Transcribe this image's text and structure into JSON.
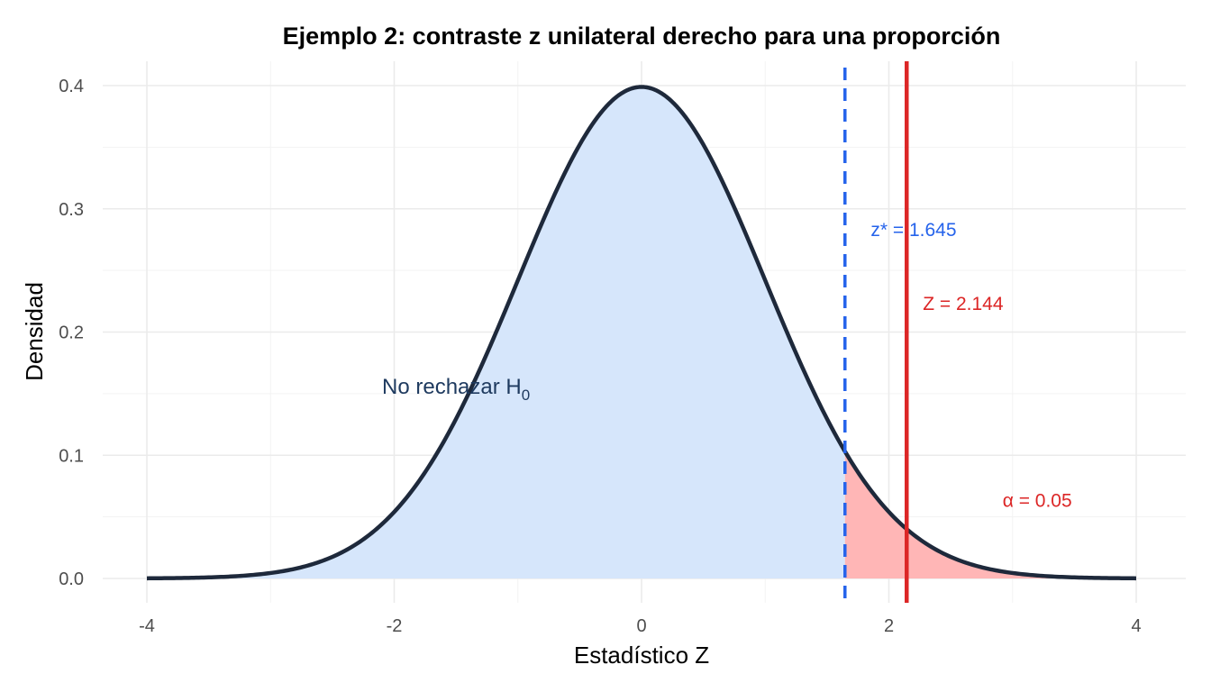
{
  "chart_data": {
    "type": "area",
    "title": "Ejemplo 2: contraste z unilateral derecho para una proporción",
    "xlabel": "Estadístico Z",
    "ylabel": "Densidad",
    "xlim": [
      -4,
      4
    ],
    "ylim": [
      0,
      0.4
    ],
    "x_ticks": [
      -4,
      -2,
      0,
      2,
      4
    ],
    "x_tick_labels": [
      "-4",
      "-2",
      "0",
      "2",
      "4"
    ],
    "y_ticks": [
      0.0,
      0.1,
      0.2,
      0.3,
      0.4
    ],
    "y_tick_labels": [
      "0.0",
      "0.1",
      "0.2",
      "0.3",
      "0.4"
    ],
    "grid": true,
    "distribution": "standard normal",
    "series": [
      {
        "region": "no-reject",
        "x_range": [
          -4,
          1.645
        ],
        "fill": "#d6e6fb"
      },
      {
        "region": "reject",
        "x_range": [
          1.645,
          4
        ],
        "fill": "#ffb6b6"
      }
    ],
    "curve_color": "#1e293b",
    "critical_value": {
      "x": 1.645,
      "label": "z* = 1.645",
      "color": "#2563eb",
      "style": "dashed"
    },
    "statistic": {
      "x": 2.144,
      "label": "Z = 2.144",
      "color": "#dc2626",
      "style": "solid"
    },
    "annotations": [
      {
        "text": "No rechazar H",
        "subscript": "0",
        "x": -1.5,
        "y": 0.15,
        "color": "#1e3a5f"
      },
      {
        "text": "α = 0.05",
        "x": 3.2,
        "y": 0.058,
        "color": "#dc2626"
      },
      {
        "text": "z* = 1.645",
        "x": 2.2,
        "y": 0.278,
        "color": "#2563eb"
      },
      {
        "text": "Z = 2.144",
        "x": 2.6,
        "y": 0.218,
        "color": "#dc2626"
      }
    ]
  }
}
